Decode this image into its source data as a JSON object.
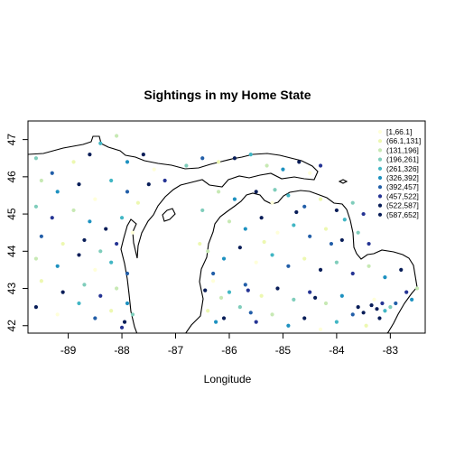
{
  "chart_data": {
    "type": "scatter",
    "title": "Sightings in my Home State",
    "xlabel": "Longitude",
    "ylabel": "",
    "xlim": [
      -89.75,
      -82.35
    ],
    "ylim": [
      41.8,
      47.5
    ],
    "x_ticks": [
      -89,
      -88,
      -87,
      -86,
      -85,
      -84,
      -83
    ],
    "x_tick_labels": [
      "-89",
      "-88",
      "-87",
      "-86",
      "-85",
      "-84",
      "-83"
    ],
    "y_ticks": [
      42,
      43,
      44,
      45,
      46,
      47
    ],
    "y_tick_labels": [
      "42",
      "43",
      "44",
      "45",
      "46",
      "47"
    ],
    "grid": false,
    "legend_position": "top-right",
    "legend": [
      {
        "label": "[1,66.1]",
        "color": "#ffffd9"
      },
      {
        "label": "(66.1,131]",
        "color": "#edf8b1"
      },
      {
        "label": "(131,196]",
        "color": "#c7e9b4"
      },
      {
        "label": "(196,261]",
        "color": "#7fcdbb"
      },
      {
        "label": "(261,326]",
        "color": "#41b6c4"
      },
      {
        "label": "(326,392]",
        "color": "#1d91c0"
      },
      {
        "label": "(392,457]",
        "color": "#225ea8"
      },
      {
        "label": "(457,522]",
        "color": "#253494"
      },
      {
        "label": "(522,587]",
        "color": "#081d58"
      },
      {
        "label": "(587,652]",
        "color": "#081d58"
      }
    ],
    "point_count_note": "approx 700 points; sample listed",
    "points": [
      [
        -89.6,
        46.5,
        3
      ],
      [
        -89.3,
        46.1,
        6
      ],
      [
        -88.9,
        46.4,
        1
      ],
      [
        -88.6,
        46.6,
        8
      ],
      [
        -88.4,
        46.9,
        4
      ],
      [
        -88.1,
        47.1,
        2
      ],
      [
        -87.9,
        46.4,
        5
      ],
      [
        -87.6,
        46.6,
        9
      ],
      [
        -87.4,
        46.2,
        0
      ],
      [
        -87.2,
        45.9,
        7
      ],
      [
        -86.8,
        46.3,
        3
      ],
      [
        -86.5,
        46.5,
        6
      ],
      [
        -86.2,
        46.4,
        1
      ],
      [
        -85.9,
        46.5,
        8
      ],
      [
        -85.6,
        46.6,
        4
      ],
      [
        -85.3,
        46.3,
        2
      ],
      [
        -85.0,
        46.2,
        5
      ],
      [
        -84.7,
        46.4,
        9
      ],
      [
        -84.5,
        46.1,
        0
      ],
      [
        -84.3,
        46.3,
        7
      ],
      [
        -89.5,
        45.9,
        2
      ],
      [
        -89.2,
        45.6,
        5
      ],
      [
        -88.8,
        45.8,
        9
      ],
      [
        -88.5,
        45.4,
        0
      ],
      [
        -88.2,
        45.9,
        4
      ],
      [
        -87.9,
        45.6,
        6
      ],
      [
        -87.7,
        45.3,
        1
      ],
      [
        -87.5,
        45.8,
        8
      ],
      [
        -89.6,
        45.2,
        3
      ],
      [
        -89.3,
        44.9,
        7
      ],
      [
        -88.9,
        45.1,
        2
      ],
      [
        -88.6,
        44.8,
        5
      ],
      [
        -88.3,
        44.6,
        9
      ],
      [
        -88.0,
        44.9,
        4
      ],
      [
        -87.8,
        44.5,
        0
      ],
      [
        -89.5,
        44.4,
        6
      ],
      [
        -89.1,
        44.2,
        1
      ],
      [
        -88.7,
        44.3,
        8
      ],
      [
        -88.4,
        44.0,
        3
      ],
      [
        -88.1,
        44.2,
        7
      ],
      [
        -89.6,
        43.8,
        2
      ],
      [
        -89.2,
        43.6,
        5
      ],
      [
        -88.8,
        43.9,
        9
      ],
      [
        -88.5,
        43.5,
        0
      ],
      [
        -88.2,
        43.7,
        4
      ],
      [
        -87.9,
        43.4,
        6
      ],
      [
        -89.5,
        43.2,
        1
      ],
      [
        -89.1,
        42.9,
        8
      ],
      [
        -88.7,
        43.1,
        3
      ],
      [
        -88.4,
        42.8,
        7
      ],
      [
        -88.1,
        43.0,
        2
      ],
      [
        -87.9,
        42.6,
        5
      ],
      [
        -89.6,
        42.5,
        9
      ],
      [
        -89.2,
        42.3,
        0
      ],
      [
        -88.8,
        42.6,
        4
      ],
      [
        -88.5,
        42.2,
        6
      ],
      [
        -88.2,
        42.4,
        1
      ],
      [
        -87.95,
        42.1,
        8
      ],
      [
        -87.8,
        42.3,
        3
      ],
      [
        -88.0,
        41.95,
        7
      ],
      [
        -86.2,
        45.6,
        2
      ],
      [
        -85.9,
        45.4,
        5
      ],
      [
        -85.5,
        45.6,
        9
      ],
      [
        -85.2,
        45.3,
        0
      ],
      [
        -84.9,
        45.5,
        4
      ],
      [
        -84.6,
        45.2,
        6
      ],
      [
        -84.3,
        45.4,
        1
      ],
      [
        -84.0,
        45.1,
        8
      ],
      [
        -83.7,
        45.3,
        3
      ],
      [
        -83.5,
        45.0,
        7
      ],
      [
        -86.0,
        44.8,
        2
      ],
      [
        -85.7,
        44.6,
        5
      ],
      [
        -85.4,
        44.9,
        9
      ],
      [
        -85.1,
        44.5,
        0
      ],
      [
        -84.8,
        44.7,
        4
      ],
      [
        -84.5,
        44.4,
        6
      ],
      [
        -84.2,
        44.6,
        1
      ],
      [
        -83.9,
        44.3,
        8
      ],
      [
        -83.6,
        44.5,
        3
      ],
      [
        -83.4,
        44.2,
        7
      ],
      [
        -86.4,
        44.0,
        2
      ],
      [
        -86.1,
        43.8,
        5
      ],
      [
        -85.8,
        44.1,
        9
      ],
      [
        -85.5,
        43.7,
        0
      ],
      [
        -85.2,
        43.9,
        4
      ],
      [
        -84.9,
        43.6,
        6
      ],
      [
        -84.6,
        43.8,
        1
      ],
      [
        -84.3,
        43.5,
        8
      ],
      [
        -84.0,
        43.7,
        3
      ],
      [
        -83.7,
        43.4,
        7
      ],
      [
        -83.4,
        43.6,
        2
      ],
      [
        -83.1,
        43.3,
        5
      ],
      [
        -82.8,
        43.5,
        9
      ],
      [
        -86.3,
        43.2,
        0
      ],
      [
        -86.0,
        42.9,
        4
      ],
      [
        -85.7,
        43.1,
        6
      ],
      [
        -85.4,
        42.8,
        1
      ],
      [
        -85.1,
        43.0,
        8
      ],
      [
        -84.8,
        42.7,
        3
      ],
      [
        -84.5,
        42.9,
        7
      ],
      [
        -84.2,
        42.6,
        2
      ],
      [
        -83.9,
        42.8,
        5
      ],
      [
        -83.6,
        42.5,
        9
      ],
      [
        -83.3,
        42.7,
        0
      ],
      [
        -83.1,
        42.4,
        4
      ],
      [
        -82.9,
        42.6,
        6
      ],
      [
        -86.4,
        42.4,
        1
      ],
      [
        -86.1,
        42.2,
        8
      ],
      [
        -85.8,
        42.5,
        3
      ],
      [
        -85.5,
        42.1,
        7
      ],
      [
        -85.2,
        42.3,
        2
      ],
      [
        -84.9,
        42.0,
        5
      ],
      [
        -84.6,
        42.2,
        9
      ],
      [
        -84.3,
        41.9,
        0
      ],
      [
        -84.0,
        42.1,
        4
      ],
      [
        -83.7,
        42.3,
        6
      ],
      [
        -83.45,
        42.0,
        1
      ],
      [
        -83.2,
        42.2,
        8
      ],
      [
        -83.0,
        42.5,
        3
      ],
      [
        -82.7,
        42.9,
        7
      ],
      [
        -82.5,
        43.0,
        2
      ],
      [
        -82.6,
        42.7,
        5
      ],
      [
        -83.5,
        42.35,
        9
      ],
      [
        -83.25,
        42.45,
        8
      ],
      [
        -83.15,
        42.6,
        7
      ],
      [
        -83.35,
        42.55,
        9
      ],
      [
        -85.6,
        42.35,
        6
      ],
      [
        -84.4,
        42.75,
        8
      ],
      [
        -85.65,
        42.95,
        7
      ],
      [
        -86.25,
        42.1,
        5
      ],
      [
        -86.5,
        45.1,
        3
      ],
      [
        -86.55,
        44.2,
        1
      ],
      [
        -86.3,
        43.4,
        6
      ],
      [
        -86.15,
        42.75,
        2
      ],
      [
        -86.45,
        42.95,
        8
      ],
      [
        -83.85,
        44.85,
        4
      ],
      [
        -84.1,
        44.2,
        6
      ],
      [
        -85.35,
        44.25,
        1
      ],
      [
        -84.75,
        45.05,
        9
      ],
      [
        -85.15,
        45.65,
        3
      ]
    ]
  }
}
